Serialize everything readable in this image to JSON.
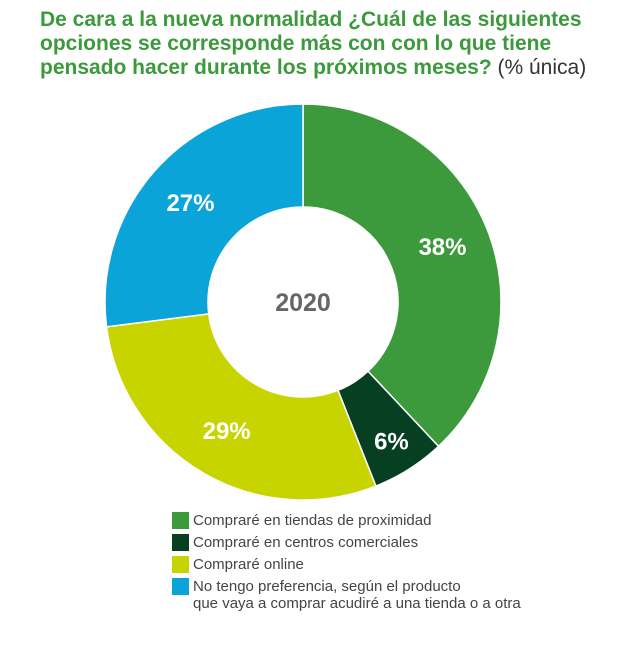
{
  "chart_data": {
    "type": "pie",
    "donut": true,
    "title": "De cara a la nueva normalidad ¿Cuál de las siguientes opciones se corresponde más con con lo que tiene pensado hacer durante los próximos meses?",
    "subtitle": "(% única)",
    "center_label": "2020",
    "legend_position": "bottom",
    "slices": [
      {
        "name": "Compraré en tiendas de proximidad",
        "value": 38,
        "label": "38%",
        "color": "#3c9a3c"
      },
      {
        "name": "Compraré en centros comerciales",
        "value": 6,
        "label": "6%",
        "color": "#073f22"
      },
      {
        "name": "Compraré  online",
        "value": 29,
        "label": "29%",
        "color": "#c8d400"
      },
      {
        "name": "No tengo preferencia, según el producto\nque vaya a comprar acudiré a una tienda o a otra",
        "value": 27,
        "label": "27%",
        "color": "#0ba4d8"
      }
    ]
  }
}
